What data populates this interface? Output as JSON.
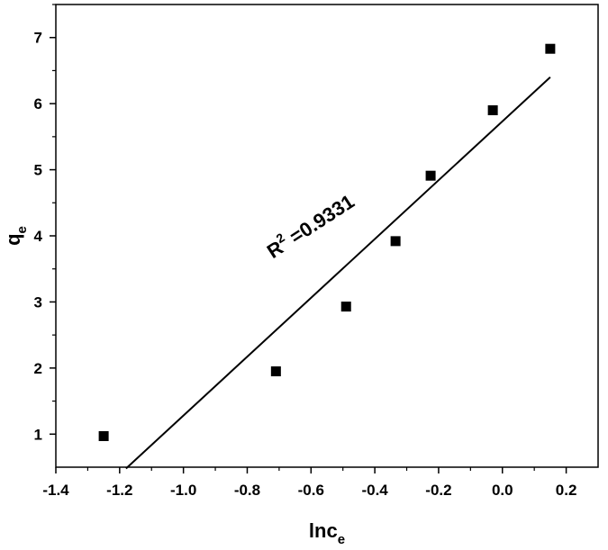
{
  "chart_data": {
    "type": "scatter",
    "xlim": [
      -1.4,
      0.3
    ],
    "ylim": [
      0.5,
      7.5
    ],
    "x_ticks": [
      -1.4,
      -1.2,
      -1.0,
      -0.8,
      -0.6,
      -0.4,
      -0.2,
      0.0,
      0.2
    ],
    "x_tick_labels": [
      "-1.4",
      "-1.2",
      "-1.0",
      "-0.8",
      "-0.6",
      "-0.4",
      "-0.2",
      "0.0",
      "0.2"
    ],
    "y_ticks": [
      1,
      2,
      3,
      4,
      5,
      6,
      7
    ],
    "y_tick_labels": [
      "1",
      "2",
      "3",
      "4",
      "5",
      "6",
      "7"
    ],
    "xlabel": {
      "main": "lnc",
      "sub": "e"
    },
    "ylabel": {
      "main": "q",
      "sub": "e"
    },
    "grid": false,
    "series": [
      {
        "marker": "square",
        "color": "#000000",
        "points": [
          {
            "x": -1.25,
            "y": 0.97
          },
          {
            "x": -0.71,
            "y": 1.95
          },
          {
            "x": -0.49,
            "y": 2.93
          },
          {
            "x": -0.335,
            "y": 3.92
          },
          {
            "x": -0.225,
            "y": 4.91
          },
          {
            "x": -0.03,
            "y": 5.9
          },
          {
            "x": 0.15,
            "y": 6.83
          }
        ]
      }
    ],
    "fit_line": {
      "x": [
        -1.18,
        0.15
      ],
      "y": [
        0.48,
        6.4
      ],
      "color": "#000000"
    },
    "annotation": {
      "prefix": "R",
      "sup": "2",
      "text": " =0.9331",
      "x": -0.72,
      "y": 3.65,
      "angle": -33
    }
  }
}
